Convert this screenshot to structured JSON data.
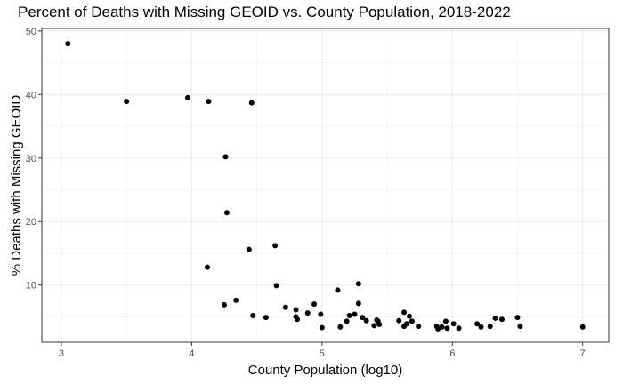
{
  "chart_data": {
    "type": "scatter",
    "title": "Percent of Deaths with Missing GEOID vs. County Population, 2018-2022",
    "xlabel": "County Population (log10)",
    "ylabel": "% Deaths with Missing GEOID",
    "xlim": [
      2.85,
      7.2
    ],
    "ylim": [
      1.0,
      50.4
    ],
    "xticks": [
      3,
      4,
      5,
      6,
      7
    ],
    "yticks": [
      10,
      20,
      30,
      40,
      50
    ],
    "grid": true,
    "points": [
      [
        3.05,
        48.0
      ],
      [
        3.5,
        38.9
      ],
      [
        3.97,
        39.5
      ],
      [
        4.13,
        38.9
      ],
      [
        4.46,
        38.7
      ],
      [
        4.26,
        30.2
      ],
      [
        4.27,
        21.4
      ],
      [
        4.12,
        12.8
      ],
      [
        4.44,
        15.6
      ],
      [
        4.64,
        16.2
      ],
      [
        4.65,
        9.9
      ],
      [
        4.25,
        6.9
      ],
      [
        4.34,
        7.6
      ],
      [
        4.47,
        5.2
      ],
      [
        4.57,
        4.9
      ],
      [
        4.72,
        6.5
      ],
      [
        4.8,
        6.1
      ],
      [
        4.8,
        5.0
      ],
      [
        4.81,
        4.6
      ],
      [
        4.89,
        5.6
      ],
      [
        4.94,
        7.0
      ],
      [
        4.99,
        5.4
      ],
      [
        5.0,
        3.3
      ],
      [
        5.12,
        9.2
      ],
      [
        5.14,
        3.4
      ],
      [
        5.19,
        4.3
      ],
      [
        5.21,
        5.2
      ],
      [
        5.25,
        5.4
      ],
      [
        5.28,
        10.2
      ],
      [
        5.28,
        7.1
      ],
      [
        5.31,
        4.9
      ],
      [
        5.34,
        4.4
      ],
      [
        5.4,
        3.6
      ],
      [
        5.42,
        4.5
      ],
      [
        5.43,
        4.3
      ],
      [
        5.44,
        3.8
      ],
      [
        5.59,
        4.4
      ],
      [
        5.63,
        5.7
      ],
      [
        5.63,
        3.5
      ],
      [
        5.65,
        3.9
      ],
      [
        5.67,
        5.1
      ],
      [
        5.69,
        4.3
      ],
      [
        5.74,
        3.5
      ],
      [
        5.88,
        3.5
      ],
      [
        5.89,
        3.1
      ],
      [
        5.92,
        3.4
      ],
      [
        5.95,
        4.3
      ],
      [
        5.96,
        3.2
      ],
      [
        6.01,
        3.9
      ],
      [
        6.05,
        3.2
      ],
      [
        6.19,
        3.9
      ],
      [
        6.22,
        3.4
      ],
      [
        6.29,
        3.5
      ],
      [
        6.33,
        4.8
      ],
      [
        6.38,
        4.6
      ],
      [
        6.5,
        4.9
      ],
      [
        6.52,
        3.5
      ],
      [
        7.0,
        3.4
      ]
    ]
  }
}
